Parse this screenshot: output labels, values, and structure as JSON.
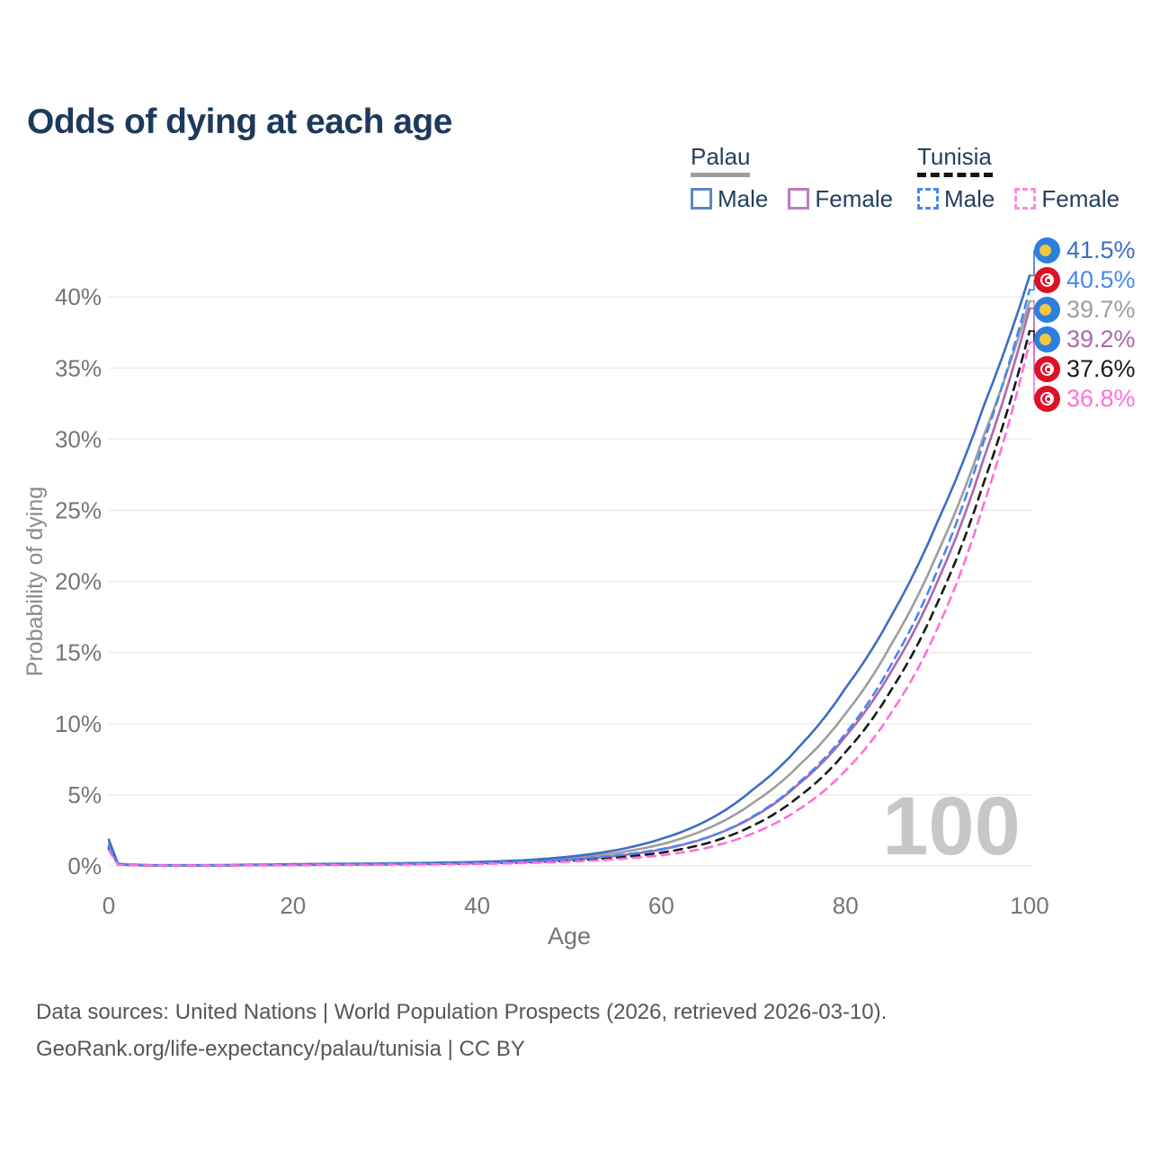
{
  "title": "Odds of dying at each age",
  "legend": {
    "groups": [
      {
        "country": "Palau",
        "style": "solid",
        "underline_color": "#9e9e9e",
        "items": [
          {
            "label": "Male",
            "color": "#3e6dc3"
          },
          {
            "label": "Female",
            "color": "#bd7dbd"
          }
        ]
      },
      {
        "country": "Tunisia",
        "style": "dashed",
        "underline_color": "#141414",
        "items": [
          {
            "label": "Male",
            "color": "#4a86f2"
          },
          {
            "label": "Female",
            "color": "#ff8ade"
          }
        ]
      }
    ]
  },
  "chart_data": {
    "type": "line",
    "title": "Odds of dying at each age",
    "xlabel": "Age",
    "ylabel": "Probability of dying",
    "xlim": [
      0,
      100
    ],
    "ylim": [
      0,
      44
    ],
    "grid": "horizontal",
    "age_marker": "100",
    "x_ticks": [
      {
        "value": 0,
        "label": "0"
      },
      {
        "value": 20,
        "label": "20"
      },
      {
        "value": 40,
        "label": "40"
      },
      {
        "value": 60,
        "label": "60"
      },
      {
        "value": 80,
        "label": "80"
      },
      {
        "value": 100,
        "label": "100"
      }
    ],
    "y_ticks": [
      {
        "value": 0,
        "label": "0%"
      },
      {
        "value": 5,
        "label": "5%"
      },
      {
        "value": 10,
        "label": "10%"
      },
      {
        "value": 15,
        "label": "15%"
      },
      {
        "value": 20,
        "label": "20%"
      },
      {
        "value": 25,
        "label": "25%"
      },
      {
        "value": 30,
        "label": "30%"
      },
      {
        "value": 35,
        "label": "35%"
      },
      {
        "value": 40,
        "label": "40%"
      }
    ],
    "ages": [
      0,
      1,
      2,
      5,
      10,
      15,
      20,
      25,
      30,
      35,
      40,
      45,
      50,
      55,
      60,
      65,
      70,
      75,
      80,
      85,
      90,
      95,
      100
    ],
    "series": [
      {
        "id": "palau-male",
        "country": "Palau",
        "sex": "Male",
        "style": "solid",
        "color": "#3e6dc3",
        "flag": "palau",
        "end_label": "41.5%",
        "end_value": 41.5,
        "values": [
          1.85,
          0.15,
          0.1,
          0.05,
          0.05,
          0.08,
          0.12,
          0.15,
          0.18,
          0.22,
          0.28,
          0.4,
          0.65,
          1.1,
          1.9,
          3.2,
          5.4,
          8.4,
          12.5,
          17.6,
          24.2,
          32.3,
          41.5
        ]
      },
      {
        "id": "tunisia-male",
        "country": "Tunisia",
        "sex": "Male",
        "style": "dashed",
        "color": "#4a86f2",
        "flag": "tunisia",
        "end_label": "40.5%",
        "end_value": 40.5,
        "values": [
          1.4,
          0.11,
          0.07,
          0.04,
          0.04,
          0.06,
          0.09,
          0.11,
          0.13,
          0.16,
          0.21,
          0.3,
          0.46,
          0.73,
          1.18,
          2.0,
          3.5,
          5.9,
          9.3,
          14.2,
          20.8,
          29.8,
          40.5
        ]
      },
      {
        "id": "palau-all",
        "country": "Palau",
        "sex": "All",
        "style": "solid",
        "color": "#9e9e9e",
        "flag": "palau",
        "end_label": "39.7%",
        "end_value": 39.7,
        "values": [
          1.6,
          0.12,
          0.08,
          0.04,
          0.04,
          0.06,
          0.1,
          0.12,
          0.15,
          0.18,
          0.24,
          0.34,
          0.54,
          0.9,
          1.52,
          2.62,
          4.45,
          7.1,
          10.7,
          15.6,
          22.0,
          30.2,
          39.7
        ]
      },
      {
        "id": "palau-female",
        "country": "Palau",
        "sex": "Female",
        "style": "solid",
        "color": "#ad68ad",
        "flag": "palau",
        "end_label": "39.2%",
        "end_value": 39.2,
        "values": [
          1.3,
          0.1,
          0.07,
          0.03,
          0.03,
          0.05,
          0.07,
          0.09,
          0.11,
          0.14,
          0.19,
          0.27,
          0.42,
          0.7,
          1.15,
          2.0,
          3.45,
          5.8,
          9.1,
          13.7,
          20.0,
          28.6,
          39.2
        ]
      },
      {
        "id": "tunisia-all",
        "country": "Tunisia",
        "sex": "All",
        "style": "dashed",
        "color": "#1a1a1a",
        "flag": "tunisia",
        "end_label": "37.6%",
        "end_value": 37.6,
        "values": [
          1.25,
          0.1,
          0.06,
          0.03,
          0.03,
          0.05,
          0.07,
          0.09,
          0.11,
          0.13,
          0.17,
          0.24,
          0.36,
          0.58,
          0.93,
          1.6,
          2.85,
          4.9,
          8.0,
          12.4,
          18.5,
          26.9,
          37.6
        ]
      },
      {
        "id": "tunisia-female",
        "country": "Tunisia",
        "sex": "Female",
        "style": "dashed",
        "color": "#ff70d8",
        "flag": "tunisia",
        "end_label": "36.8%",
        "end_value": 36.8,
        "values": [
          1.1,
          0.09,
          0.05,
          0.03,
          0.03,
          0.04,
          0.05,
          0.07,
          0.09,
          0.11,
          0.14,
          0.2,
          0.3,
          0.47,
          0.74,
          1.28,
          2.3,
          4.0,
          6.7,
          10.8,
          16.7,
          25.4,
          36.8
        ]
      }
    ]
  },
  "footer": {
    "line1": "Data sources: United Nations | World Population Prospects (2026, retrieved 2026-03-10).",
    "line2": "GeoRank.org/life-expectancy/palau/tunisia | CC BY"
  }
}
